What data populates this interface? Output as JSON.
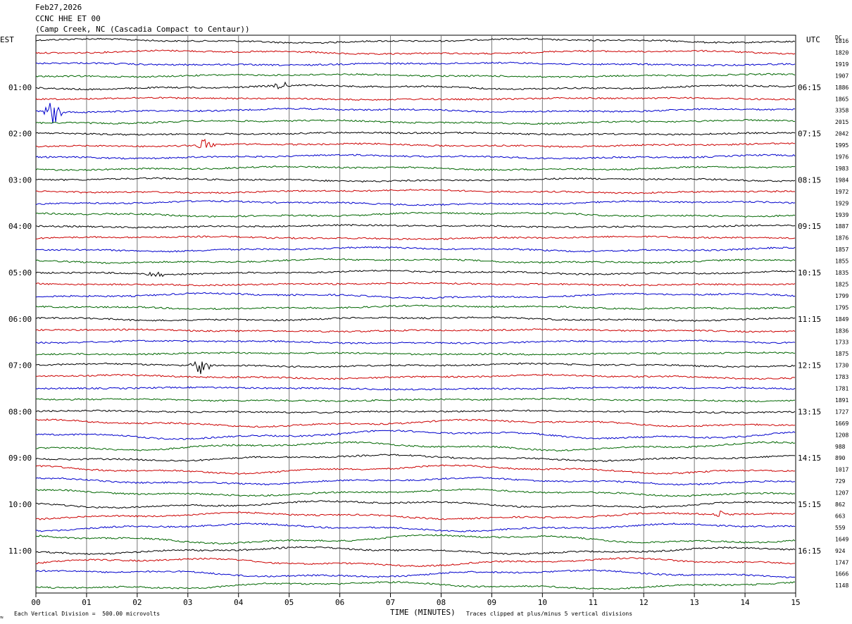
{
  "header": {
    "date": "Feb27,2026",
    "station": "CCNC HHE ET 00",
    "location": "(Camp Creek, NC (Cascadia Compact to Centaur))"
  },
  "left_zone_label": "EST",
  "right_zone_label": "UTC",
  "dc_label": "DC",
  "footer": {
    "vertical_division": "Each Vertical Division =  500.00 microvolts",
    "xlabel": "TIME (MINUTES)",
    "clip_note": "Traces clipped at plus/minus 5 vertical divisions",
    "mark": "≈"
  },
  "colors": {
    "trace_cycle": [
      "#000000",
      "#cc0000",
      "#0000cc",
      "#006600"
    ],
    "grid": "#777777"
  },
  "chart_data": {
    "type": "line",
    "x_ticks": [
      "00",
      "01",
      "02",
      "03",
      "04",
      "05",
      "06",
      "07",
      "08",
      "09",
      "10",
      "11",
      "12",
      "13",
      "14",
      "15"
    ],
    "xlim": [
      0,
      15
    ],
    "hour_labels_est": [
      "01:00",
      "02:00",
      "03:00",
      "04:00",
      "05:00",
      "06:00",
      "07:00",
      "08:00",
      "09:00",
      "10:00",
      "11:00"
    ],
    "hour_labels_utc": [
      "06:15",
      "07:15",
      "08:15",
      "09:15",
      "10:15",
      "11:15",
      "12:15",
      "13:15",
      "14:15",
      "15:15",
      "16:15"
    ],
    "dc_offsets": [
      "1816",
      "1820",
      "1919",
      "1907",
      "1886",
      "1865",
      "3358",
      "2015",
      "2042",
      "1995",
      "1976",
      "1983",
      "1984",
      "1972",
      "1929",
      "1939",
      "1887",
      "1876",
      "1857",
      "1855",
      "1835",
      "1825",
      "1799",
      "1795",
      "1849",
      "1836",
      "1733",
      "1875",
      "1730",
      "1783",
      "1781",
      "1891",
      "1727",
      "1669",
      "1208",
      "988",
      "890",
      "1017",
      "729",
      "1207",
      "862",
      "663",
      "559",
      "1649",
      "924",
      "1747",
      "1666",
      "1148"
    ],
    "events": [
      {
        "trace": 4,
        "minute": 4.85,
        "amplitude": 0.5
      },
      {
        "trace": 6,
        "minute": 0.35,
        "amplitude": -1.6
      },
      {
        "trace": 9,
        "minute": 3.35,
        "amplitude": 0.8
      },
      {
        "trace": 20,
        "minute": 2.4,
        "amplitude": 0.4
      },
      {
        "trace": 28,
        "minute": 3.25,
        "amplitude": 1.1
      },
      {
        "trace": 41,
        "minute": 13.5,
        "amplitude": 0.5
      }
    ]
  }
}
